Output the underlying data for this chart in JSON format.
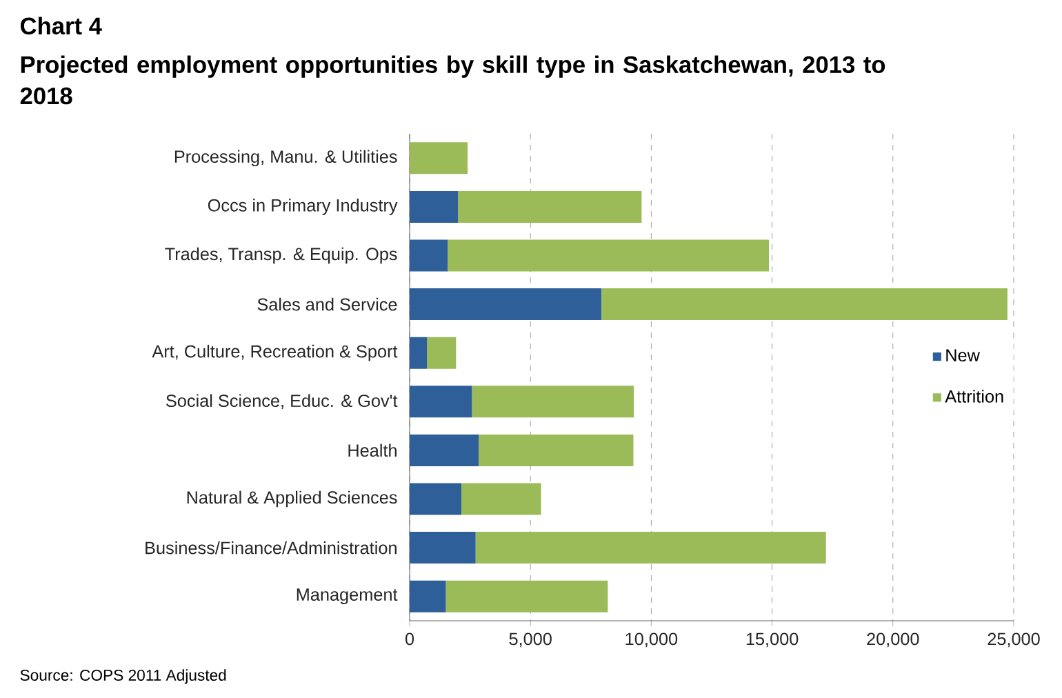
{
  "chart_data": {
    "type": "bar",
    "orientation": "horizontal",
    "stacked": true,
    "title": "Chart 4",
    "subtitle": "Projected employment opportunities by skill type in Saskatchewan, 2013 to 2018",
    "categories": [
      "Processing, Manu. & Utilities",
      "Occs in Primary Industry",
      "Trades, Transp. & Equip. Ops",
      "Sales and Service",
      "Art, Culture, Recreation & Sport",
      "Social Science, Educ. & Gov't",
      "Health",
      "Natural & Applied Sciences",
      "Business/Finance/Administration",
      "Management"
    ],
    "series": [
      {
        "name": "New",
        "color": "#2e5f99",
        "values": [
          0,
          2000,
          1570,
          7940,
          720,
          2580,
          2860,
          2140,
          2730,
          1500
        ]
      },
      {
        "name": "Attrition",
        "color": "#9bbb59",
        "values": [
          2400,
          7600,
          13300,
          16800,
          1200,
          6700,
          6400,
          3300,
          14500,
          6700
        ]
      }
    ],
    "xlim": [
      0,
      25000
    ],
    "xticks": [
      0,
      {
        "value": 5000,
        "label": "5,000"
      },
      {
        "value": 10000,
        "label": "10,000"
      },
      {
        "value": 15000,
        "label": "15,000"
      },
      {
        "value": 20000,
        "label": "20,000"
      },
      {
        "value": 25000,
        "label": "25,000"
      }
    ],
    "grid": "x",
    "legend": "right",
    "annotations": [
      "Source: COPS 2011 Adjusted"
    ]
  }
}
